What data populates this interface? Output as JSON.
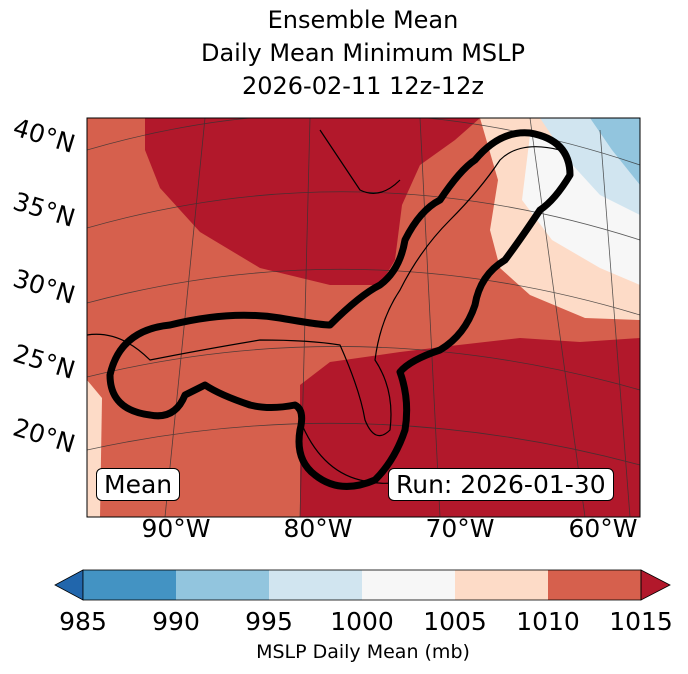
{
  "title": {
    "line1": "Ensemble Mean",
    "line2": "Daily Mean Minimum MSLP",
    "line3": "2026-02-11 12z-12z"
  },
  "lat_labels": [
    "40°N",
    "35°N",
    "30°N",
    "25°N",
    "20°N"
  ],
  "lon_labels": [
    "90°W",
    "80°W",
    "70°W",
    "60°W"
  ],
  "mean_label": "Mean",
  "run_label": "Run: 2026-01-30",
  "colorbar": {
    "ticks": [
      "985",
      "990",
      "995",
      "1000",
      "1005",
      "1010",
      "1015"
    ],
    "colors": [
      "#2166ac",
      "#4393c3",
      "#92c5de",
      "#d1e5f0",
      "#f7f7f7",
      "#fddbc7",
      "#d6604d",
      "#b2182b"
    ],
    "label": "MSLP Daily Mean (mb)"
  }
}
